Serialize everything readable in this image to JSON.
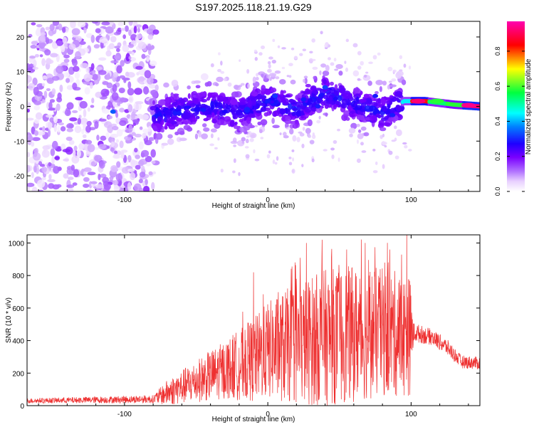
{
  "title": "S197.2025.118.21.19.G29",
  "chart_data": [
    {
      "type": "heatmap",
      "xlabel": "Height of straight line (km)",
      "ylabel": "Frequency (Hz)",
      "xlim": [
        -168,
        148
      ],
      "ylim": [
        -24.5,
        24.5
      ],
      "xticks": [
        -100,
        0,
        100
      ],
      "yticks": [
        -20,
        -10,
        0,
        10,
        20
      ],
      "colorbar": {
        "label": "Normalized spectral amplitude",
        "ticks": [
          0.0,
          0.2,
          0.4,
          0.6,
          0.8
        ],
        "range": [
          0,
          0.97
        ],
        "colormap": [
          "#ffffff",
          "#e8d0ff",
          "#b070ff",
          "#7a00ff",
          "#1f00ff",
          "#00ffff",
          "#00ff40",
          "#ffff00",
          "#ff0000",
          "#ff00b0"
        ]
      },
      "noise_region": {
        "x": [
          -168,
          -78
        ],
        "y": [
          -24.5,
          24.5
        ],
        "level": 0.12
      },
      "ridge": [
        {
          "x": -78,
          "f": -3
        },
        {
          "x": -60,
          "f": -1
        },
        {
          "x": -40,
          "f": 0
        },
        {
          "x": -20,
          "f": -2
        },
        {
          "x": 0,
          "f": 2
        },
        {
          "x": 20,
          "f": -1
        },
        {
          "x": 40,
          "f": 4
        },
        {
          "x": 60,
          "f": 1
        },
        {
          "x": 80,
          "f": -2
        },
        {
          "x": 95,
          "f": 1.5
        },
        {
          "x": 110,
          "f": 1.5
        },
        {
          "x": 130,
          "f": 0.5
        },
        {
          "x": 148,
          "f": 0
        }
      ],
      "spots": [
        {
          "x": -108,
          "f": -1.5,
          "a": 0.35
        },
        {
          "x": -62,
          "f": -2,
          "a": 0.3
        },
        {
          "x": -45,
          "f": -1,
          "a": 0.3
        },
        {
          "x": -30,
          "f": -1.5,
          "a": 0.28
        },
        {
          "x": 0,
          "f": 1.5,
          "a": 0.3
        },
        {
          "x": 5,
          "f": 3,
          "a": 0.32
        },
        {
          "x": 25,
          "f": 2,
          "a": 0.3
        },
        {
          "x": 35,
          "f": 0,
          "a": 0.3
        },
        {
          "x": 40,
          "f": 5.5,
          "a": 0.33
        },
        {
          "x": 75,
          "f": 3,
          "a": 0.3
        },
        {
          "x": 87,
          "f": -2.5,
          "a": 0.3
        },
        {
          "x": 105,
          "f": 1.5,
          "a": 0.95
        },
        {
          "x": 118,
          "f": 1.5,
          "a": 0.6
        },
        {
          "x": 140,
          "f": 0.3,
          "a": 0.97
        }
      ]
    },
    {
      "type": "line",
      "xlabel": "Height of straight line (km)",
      "ylabel": "SNR (10 * v/v)",
      "xlim": [
        -168,
        148
      ],
      "ylim": [
        0,
        1050
      ],
      "xticks": [
        -100,
        0,
        100
      ],
      "yticks": [
        0,
        200,
        400,
        600,
        800,
        1000
      ],
      "color": "#ee3030",
      "envelope": [
        {
          "x": -168,
          "base": 30,
          "amp": 15
        },
        {
          "x": -80,
          "base": 40,
          "amp": 25
        },
        {
          "x": -70,
          "base": 80,
          "amp": 80
        },
        {
          "x": -50,
          "base": 150,
          "amp": 130
        },
        {
          "x": -30,
          "base": 220,
          "amp": 180
        },
        {
          "x": -10,
          "base": 280,
          "amp": 260
        },
        {
          "x": 0,
          "base": 340,
          "amp": 300
        },
        {
          "x": 20,
          "base": 380,
          "amp": 380
        },
        {
          "x": 40,
          "base": 420,
          "amp": 420
        },
        {
          "x": 60,
          "base": 440,
          "amp": 420
        },
        {
          "x": 80,
          "base": 450,
          "amp": 400
        },
        {
          "x": 99,
          "base": 430,
          "amp": 380
        },
        {
          "x": 102,
          "base": 450,
          "amp": 60
        },
        {
          "x": 115,
          "base": 420,
          "amp": 50
        },
        {
          "x": 125,
          "base": 360,
          "amp": 50
        },
        {
          "x": 135,
          "base": 270,
          "amp": 40
        },
        {
          "x": 148,
          "base": 260,
          "amp": 40
        }
      ],
      "peaks": [
        {
          "x": -10,
          "y": 820
        },
        {
          "x": 20,
          "y": 780
        },
        {
          "x": 27,
          "y": 1000
        },
        {
          "x": 38,
          "y": 1020
        },
        {
          "x": 55,
          "y": 960
        },
        {
          "x": 68,
          "y": 1000
        },
        {
          "x": 85,
          "y": 960
        },
        {
          "x": 97,
          "y": 1050
        }
      ]
    }
  ]
}
